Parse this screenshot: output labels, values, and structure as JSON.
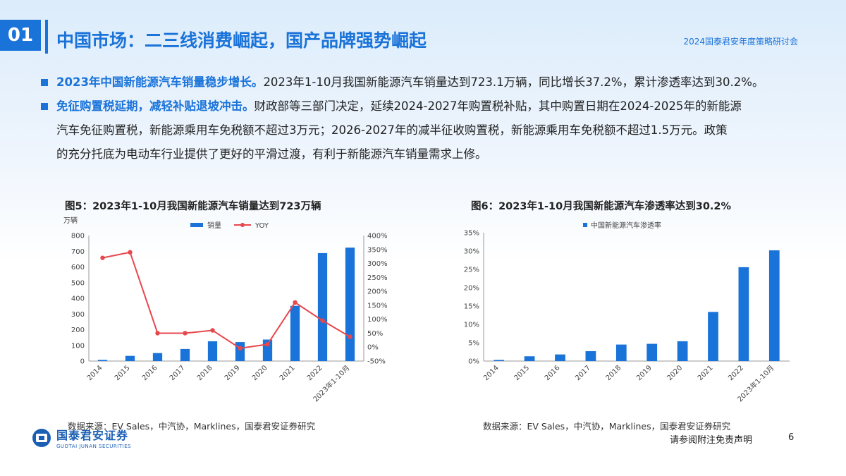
{
  "header": {
    "section_number": "01",
    "title": "中国市场：二三线消费崛起，国产品牌强势崛起",
    "event": "2024国泰君安年度策略研讨会"
  },
  "bullets": [
    {
      "lead": "2023年中国新能源汽车销量稳步增长。",
      "lines": [
        "2023年1-10月我国新能源汽车销量达到723.1万辆，同比增长37.2%，累计渗透率达到30.2%。"
      ]
    },
    {
      "lead": "免征购置税延期，减轻补贴退坡冲击。",
      "lines": [
        "财政部等三部门决定，延续2024-2027年购置税补贴，其中购置日期在2024-2025年的新能源",
        "汽车免征购置税，新能源乘用车免税额不超过3万元；2026-2027年的减半征收购置税，新能源乘用车免税额不超过1.5万元。政策",
        "的充分托底为电动车行业提供了更好的平滑过渡，有利于新能源汽车销量需求上修。"
      ]
    }
  ],
  "chart_data": [
    {
      "type": "bar",
      "title": "图5：2023年1-10月我国新能源汽车销量达到723万辆",
      "ylabel": "万辆",
      "categories": [
        "2014",
        "2015",
        "2016",
        "2017",
        "2018",
        "2019",
        "2020",
        "2021",
        "2022",
        "2023年1-10月"
      ],
      "series": [
        {
          "name": "销量",
          "type": "bar",
          "axis": "left",
          "color": "#1a73d9",
          "values": [
            7.5,
            33,
            51,
            77,
            126,
            121,
            137,
            352,
            688,
            723
          ]
        },
        {
          "name": "YOY",
          "type": "line",
          "axis": "right",
          "color": "#e8474c",
          "values": [
            3.2,
            3.4,
            0.5,
            0.5,
            0.6,
            -0.04,
            0.1,
            1.6,
            0.95,
            0.37
          ]
        }
      ],
      "ylim": [
        0,
        800
      ],
      "yticks": [
        "0",
        "100",
        "200",
        "300",
        "400",
        "500",
        "600",
        "700",
        "800"
      ],
      "y2lim": [
        -0.5,
        4.0
      ],
      "y2ticks": [
        "-50%",
        "0%",
        "50%",
        "100%",
        "150%",
        "200%",
        "250%",
        "300%",
        "350%",
        "400%"
      ],
      "legend": "top-center",
      "grid": false
    },
    {
      "type": "bar",
      "title": "图6：2023年1-10月我国新能源汽车渗透率达到30.2%",
      "categories": [
        "2014",
        "2015",
        "2016",
        "2017",
        "2018",
        "2019",
        "2020",
        "2021",
        "2022",
        "2023年1-10月"
      ],
      "series": [
        {
          "name": "中国新能源汽车渗透率",
          "color": "#1a73d9",
          "values": [
            0.003,
            0.013,
            0.018,
            0.027,
            0.045,
            0.047,
            0.054,
            0.134,
            0.256,
            0.302
          ]
        }
      ],
      "ylim": [
        0,
        0.35
      ],
      "yticks": [
        "0%",
        "5%",
        "10%",
        "15%",
        "20%",
        "25%",
        "30%",
        "35%"
      ],
      "legend": "top-left",
      "grid": false
    }
  ],
  "sources": {
    "left": "数据来源：EV Sales，中汽协，Marklines，国泰君安证券研究",
    "right": "数据来源：EV Sales，中汽协，Marklines，国泰君安证券研究"
  },
  "footer": {
    "logo_cn": "国泰君安证券",
    "logo_en": "GUOTAI JUNAN SECURITIES",
    "disclaimer": "请参阅附注免责声明",
    "page": "6"
  }
}
